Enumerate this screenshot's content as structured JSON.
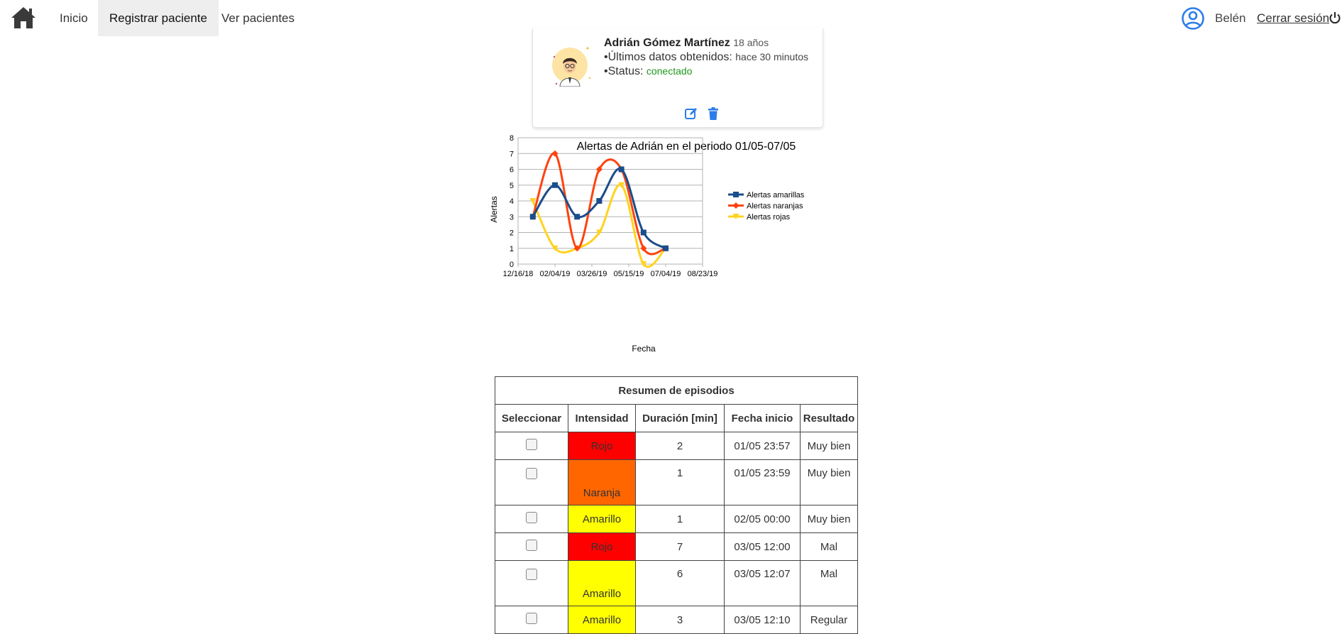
{
  "nav": {
    "links": [
      {
        "label": "Inicio"
      },
      {
        "label": "Registrar paciente"
      },
      {
        "label": "Ver pacientes"
      }
    ],
    "user_name": "Belén",
    "logout_label": "Cerrar sesión"
  },
  "patient": {
    "name": "Adrián Gómez Martínez",
    "age": "18 años",
    "last_data_label": "•Últimos datos obtenidos:",
    "last_data_value": "hace 30 minutos",
    "status_label": "•Status:",
    "status_value": "conectado"
  },
  "chart_data": {
    "type": "line",
    "title": "Alertas de Adrián en el periodo 01/05-07/05",
    "xlabel": "Fecha",
    "ylabel": "Alertas",
    "x_tick_labels": [
      "12/16/18",
      "02/04/19",
      "03/26/19",
      "05/15/19",
      "07/04/19",
      "08/23/19"
    ],
    "x_tick_days": [
      0,
      50,
      100,
      150,
      200,
      250
    ],
    "xlim": [
      0,
      250
    ],
    "ylim": [
      0,
      8
    ],
    "y_ticks": [
      0,
      1,
      2,
      3,
      4,
      5,
      6,
      7,
      8
    ],
    "x_days": [
      20,
      50,
      80,
      110,
      140,
      170,
      200
    ],
    "series": [
      {
        "name": "Alertas amarillas",
        "color": "#1a4d8c",
        "marker": "square",
        "values": [
          3,
          5,
          3,
          4,
          6,
          2,
          1
        ]
      },
      {
        "name": "Alertas naranjas",
        "color": "#ff420e",
        "marker": "diamond",
        "values": [
          3,
          7,
          1,
          6,
          6,
          1,
          1
        ]
      },
      {
        "name": "Alertas rojas",
        "color": "#ffd320",
        "marker": "triangle-down",
        "values": [
          4,
          1,
          1,
          2,
          5,
          0,
          1
        ]
      }
    ],
    "grid": true,
    "legend": "right"
  },
  "table": {
    "caption": "Resumen de episodios",
    "headers": [
      "Seleccionar",
      "Intensidad",
      "Duración [min]",
      "Fecha inicio",
      "Resultado"
    ],
    "rows": [
      {
        "intensity": "Rojo",
        "color": "#ff0000",
        "duration": "2",
        "start": "01/05 23:57",
        "result": "Muy bien"
      },
      {
        "intensity": "Naranja",
        "color": "#ff6600",
        "duration": "1",
        "start": "01/05 23:59",
        "result": "Muy bien"
      },
      {
        "intensity": "Amarillo",
        "color": "#ffff00",
        "duration": "1",
        "start": "02/05 00:00",
        "result": "Muy bien"
      },
      {
        "intensity": "Rojo",
        "color": "#ff0000",
        "duration": "7",
        "start": "03/05 12:00",
        "result": "Mal"
      },
      {
        "intensity": "Amarillo",
        "color": "#ffff00",
        "duration": "6",
        "start": "03/05 12:07",
        "result": "Mal"
      },
      {
        "intensity": "Amarillo",
        "color": "#ffff00",
        "duration": "3",
        "start": "03/05 12:10",
        "result": "Regular"
      }
    ]
  },
  "colors": {
    "accent": "#2b7de9",
    "connected": "#1e9a1e"
  }
}
